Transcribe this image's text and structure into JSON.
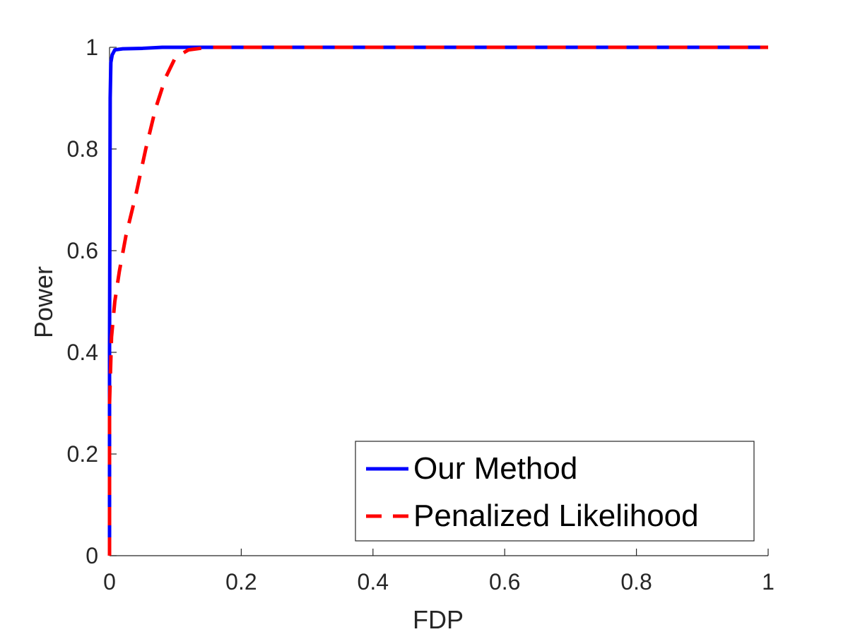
{
  "chart_data": {
    "type": "line",
    "title": "",
    "xlabel": "FDP",
    "ylabel": "Power",
    "xlim": [
      0,
      1
    ],
    "ylim": [
      0,
      1
    ],
    "xticks": [
      0,
      0.2,
      0.4,
      0.6,
      0.8,
      1
    ],
    "yticks": [
      0,
      0.2,
      0.4,
      0.6,
      0.8,
      1
    ],
    "xtick_labels": [
      "0",
      "0.2",
      "0.4",
      "0.6",
      "0.8",
      "1"
    ],
    "ytick_labels": [
      "0",
      "0.2",
      "0.4",
      "0.6",
      "0.8",
      "1"
    ],
    "grid": false,
    "legend_position": "bottom-right",
    "series": [
      {
        "name": "Our Method",
        "color": "#0000ff",
        "style": "solid",
        "x": [
          0,
          0.0,
          0.001,
          0.002,
          0.004,
          0.008,
          0.02,
          0.05,
          0.08,
          0.12,
          0.2,
          0.5,
          1.0
        ],
        "y": [
          0,
          0.4,
          0.9,
          0.97,
          0.985,
          0.995,
          0.997,
          0.998,
          1.0,
          1.0,
          1.0,
          1.0,
          1.0
        ]
      },
      {
        "name": "Penalized Likelihood",
        "color": "#ff0000",
        "style": "dashed",
        "x": [
          0,
          0.0,
          0.003,
          0.008,
          0.015,
          0.025,
          0.04,
          0.055,
          0.07,
          0.085,
          0.1,
          0.12,
          0.15,
          0.2,
          0.5,
          1.0
        ],
        "y": [
          0,
          0.3,
          0.43,
          0.5,
          0.56,
          0.63,
          0.71,
          0.8,
          0.88,
          0.94,
          0.98,
          0.995,
          1.0,
          1.0,
          1.0,
          1.0
        ]
      }
    ]
  }
}
